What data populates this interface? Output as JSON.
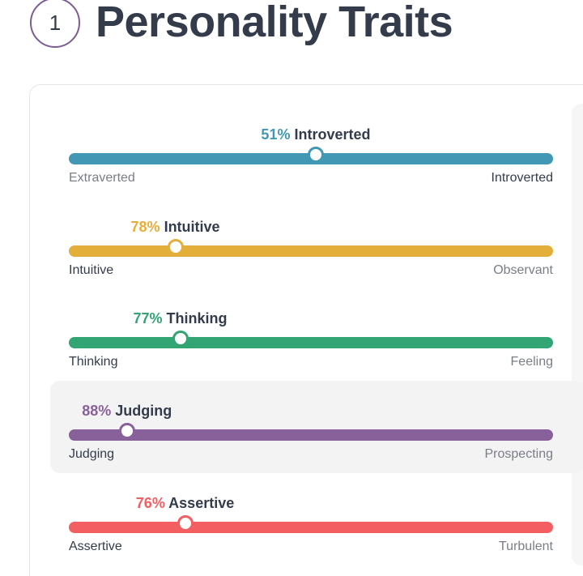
{
  "section": {
    "number": "1",
    "title": "Personality Traits"
  },
  "traits": [
    {
      "percent": "51%",
      "name": "Introverted",
      "value": 51,
      "dominant_side": "right",
      "color": "#4298b4",
      "left_label": "Extraverted",
      "right_label": "Introverted"
    },
    {
      "percent": "78%",
      "name": "Intuitive",
      "value": 78,
      "dominant_side": "left",
      "color": "#e4ae3a",
      "left_label": "Intuitive",
      "right_label": "Observant"
    },
    {
      "percent": "77%",
      "name": "Thinking",
      "value": 77,
      "dominant_side": "left",
      "color": "#33a474",
      "left_label": "Thinking",
      "right_label": "Feeling"
    },
    {
      "percent": "88%",
      "name": "Judging",
      "value": 88,
      "dominant_side": "left",
      "color": "#88619a",
      "left_label": "Judging",
      "right_label": "Prospecting",
      "highlighted": true
    },
    {
      "percent": "76%",
      "name": "Assertive",
      "value": 76,
      "dominant_side": "left",
      "color": "#f25e62",
      "left_label": "Assertive",
      "right_label": "Turbulent"
    }
  ]
}
